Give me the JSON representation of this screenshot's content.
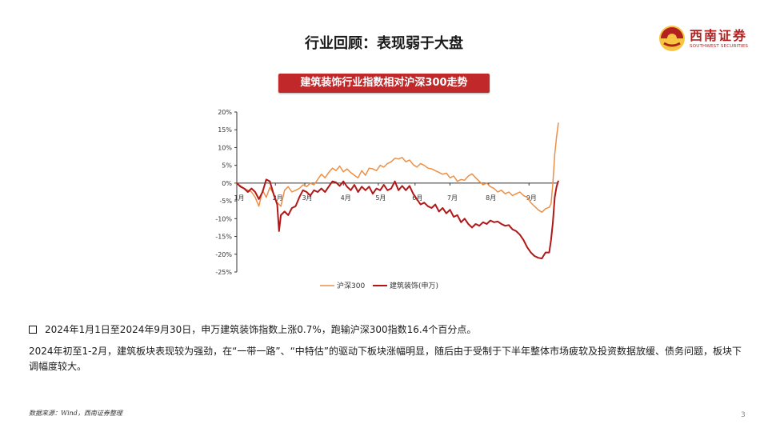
{
  "slide": {
    "title": "行业回顾：表现弱于大盘",
    "logo": {
      "cn": "西南证券",
      "en": "SOUTHWEST SECURITIES"
    },
    "chart_banner": "建筑装饰行业指数相对沪深300走势",
    "bullet": "2024年1月1日至2024年9月30日，申万建筑装饰指数上涨0.7%，跑输沪深300指数16.4个百分点。",
    "paragraph": "2024年初至1-2月，建筑板块表现较为强劲，在“一带一路”、“中特估”的驱动下板块涨幅明显，随后由于受制于下半年整体市场疲软及投资数据放缓、债务问题，板块下调幅度较大。",
    "source": "数据来源：Wind，西南证券整理",
    "page_number": "3",
    "colors": {
      "brand_red": "#b2201f",
      "banner_red": "#c0282a",
      "hs300": "#ed8f45",
      "construction": "#b01818"
    }
  },
  "chart_data": {
    "type": "line",
    "x_unit": "trading days (2024-01-02 to 2024-09-30)",
    "xlim": [
      0,
      175
    ],
    "x_ticks": [
      {
        "x": 0,
        "label": "1月"
      },
      {
        "x": 21,
        "label": "2月"
      },
      {
        "x": 37,
        "label": "3月"
      },
      {
        "x": 58,
        "label": "4月"
      },
      {
        "x": 77,
        "label": "5月"
      },
      {
        "x": 97,
        "label": "6月"
      },
      {
        "x": 116,
        "label": "7月"
      },
      {
        "x": 137,
        "label": "8月"
      },
      {
        "x": 159,
        "label": "9月"
      }
    ],
    "ylim": [
      -25,
      20
    ],
    "y_ticks": [
      20,
      15,
      10,
      5,
      0,
      -5,
      -10,
      -15,
      -20,
      -25
    ],
    "y_tick_labels": [
      "20%",
      "15%",
      "10%",
      "5%",
      "0%",
      "-5%",
      "-10%",
      "-15%",
      "-20%",
      "-25%"
    ],
    "legend_position": "bottom",
    "series": [
      {
        "name": "沪深300",
        "color": "#ed8f45",
        "points": [
          [
            0,
            0
          ],
          [
            4,
            -1.5
          ],
          [
            8,
            -2.5
          ],
          [
            10,
            -4
          ],
          [
            12,
            -6.5
          ],
          [
            14,
            -2
          ],
          [
            16,
            -4
          ],
          [
            18,
            -1.2
          ],
          [
            20,
            -3
          ],
          [
            22,
            -5.5
          ],
          [
            24,
            -6.5
          ],
          [
            26,
            -2
          ],
          [
            28,
            -1
          ],
          [
            30,
            -2.5
          ],
          [
            32,
            -2
          ],
          [
            34,
            -1.5
          ],
          [
            36,
            -0.5
          ],
          [
            38,
            -1
          ],
          [
            40,
            0
          ],
          [
            42,
            -0.5
          ],
          [
            44,
            1
          ],
          [
            46,
            2.5
          ],
          [
            48,
            1.5
          ],
          [
            50,
            3
          ],
          [
            52,
            4.2
          ],
          [
            54,
            3.5
          ],
          [
            56,
            4.8
          ],
          [
            58,
            3.2
          ],
          [
            60,
            4
          ],
          [
            62,
            3
          ],
          [
            64,
            2.2
          ],
          [
            66,
            1.5
          ],
          [
            68,
            3.5
          ],
          [
            70,
            2.2
          ],
          [
            72,
            4.2
          ],
          [
            74,
            4
          ],
          [
            76,
            3.5
          ],
          [
            78,
            5
          ],
          [
            80,
            4.5
          ],
          [
            82,
            5.5
          ],
          [
            84,
            6
          ],
          [
            86,
            7
          ],
          [
            88,
            6.8
          ],
          [
            90,
            7.2
          ],
          [
            92,
            6
          ],
          [
            94,
            6.5
          ],
          [
            96,
            5.2
          ],
          [
            98,
            4.5
          ],
          [
            100,
            5.5
          ],
          [
            102,
            5
          ],
          [
            104,
            4.2
          ],
          [
            106,
            4
          ],
          [
            108,
            3.5
          ],
          [
            110,
            3
          ],
          [
            112,
            2.5
          ],
          [
            114,
            2.8
          ],
          [
            116,
            1.5
          ],
          [
            118,
            2
          ],
          [
            120,
            0.5
          ],
          [
            122,
            1
          ],
          [
            124,
            0.8
          ],
          [
            126,
            2
          ],
          [
            128,
            2.6
          ],
          [
            130,
            1.5
          ],
          [
            132,
            0.5
          ],
          [
            134,
            -0.5
          ],
          [
            136,
            0
          ],
          [
            138,
            -1
          ],
          [
            140,
            -1.5
          ],
          [
            142,
            -2.5
          ],
          [
            144,
            -2
          ],
          [
            146,
            -3
          ],
          [
            148,
            -2.5
          ],
          [
            150,
            -3.5
          ],
          [
            152,
            -3
          ],
          [
            154,
            -2.5
          ],
          [
            156,
            -3.5
          ],
          [
            158,
            -4
          ],
          [
            160,
            -5.5
          ],
          [
            162,
            -6.5
          ],
          [
            164,
            -7.5
          ],
          [
            166,
            -8.2
          ],
          [
            168,
            -7.2
          ],
          [
            170,
            -6.8
          ],
          [
            171,
            -5.8
          ],
          [
            172,
            0
          ],
          [
            173,
            8
          ],
          [
            174,
            13
          ],
          [
            175,
            17
          ]
        ]
      },
      {
        "name": "建筑装饰(申万)",
        "color": "#b01818",
        "points": [
          [
            0,
            0
          ],
          [
            2,
            -1
          ],
          [
            4,
            -1.5
          ],
          [
            6,
            -2.5
          ],
          [
            8,
            -1.5
          ],
          [
            10,
            -2.5
          ],
          [
            12,
            -4.5
          ],
          [
            14,
            -2.5
          ],
          [
            16,
            1
          ],
          [
            18,
            0.5
          ],
          [
            20,
            -3
          ],
          [
            22,
            -6
          ],
          [
            23,
            -13.5
          ],
          [
            24,
            -9
          ],
          [
            26,
            -8
          ],
          [
            28,
            -9
          ],
          [
            30,
            -7
          ],
          [
            32,
            -6.5
          ],
          [
            34,
            -4
          ],
          [
            36,
            -2
          ],
          [
            38,
            -2.5
          ],
          [
            40,
            -3.5
          ],
          [
            42,
            -2
          ],
          [
            44,
            -2.5
          ],
          [
            46,
            -1.5
          ],
          [
            48,
            -2.5
          ],
          [
            50,
            -1
          ],
          [
            52,
            0.5
          ],
          [
            54,
            0.2
          ],
          [
            56,
            -0.8
          ],
          [
            58,
            0.5
          ],
          [
            60,
            -1
          ],
          [
            62,
            -2
          ],
          [
            64,
            -0.5
          ],
          [
            66,
            -2.5
          ],
          [
            68,
            -1
          ],
          [
            70,
            -2
          ],
          [
            72,
            -1
          ],
          [
            74,
            -3
          ],
          [
            76,
            -1.5
          ],
          [
            78,
            -2
          ],
          [
            80,
            -0.5
          ],
          [
            82,
            -2
          ],
          [
            84,
            -1.5
          ],
          [
            86,
            0.5
          ],
          [
            88,
            -2
          ],
          [
            90,
            -0.8
          ],
          [
            92,
            -2
          ],
          [
            94,
            -0.8
          ],
          [
            96,
            -3
          ],
          [
            98,
            -4.5
          ],
          [
            100,
            -6
          ],
          [
            102,
            -5.5
          ],
          [
            104,
            -6.5
          ],
          [
            106,
            -7
          ],
          [
            108,
            -6
          ],
          [
            110,
            -8
          ],
          [
            112,
            -7
          ],
          [
            114,
            -8.5
          ],
          [
            116,
            -7.5
          ],
          [
            118,
            -9.5
          ],
          [
            120,
            -9
          ],
          [
            122,
            -11
          ],
          [
            124,
            -10
          ],
          [
            126,
            -11.5
          ],
          [
            128,
            -12.5
          ],
          [
            130,
            -11.5
          ],
          [
            132,
            -12
          ],
          [
            134,
            -11
          ],
          [
            136,
            -11.5
          ],
          [
            138,
            -10.5
          ],
          [
            140,
            -11
          ],
          [
            142,
            -10.8
          ],
          [
            144,
            -11.5
          ],
          [
            146,
            -12
          ],
          [
            148,
            -11.8
          ],
          [
            150,
            -13
          ],
          [
            152,
            -13.5
          ],
          [
            154,
            -14.5
          ],
          [
            156,
            -16
          ],
          [
            158,
            -18
          ],
          [
            160,
            -19.5
          ],
          [
            162,
            -20.5
          ],
          [
            164,
            -21
          ],
          [
            166,
            -21.2
          ],
          [
            168,
            -19.5
          ],
          [
            170,
            -19.5
          ],
          [
            171,
            -16
          ],
          [
            172,
            -11
          ],
          [
            173,
            -4
          ],
          [
            174,
            -1
          ],
          [
            175,
            0.7
          ]
        ]
      }
    ]
  }
}
